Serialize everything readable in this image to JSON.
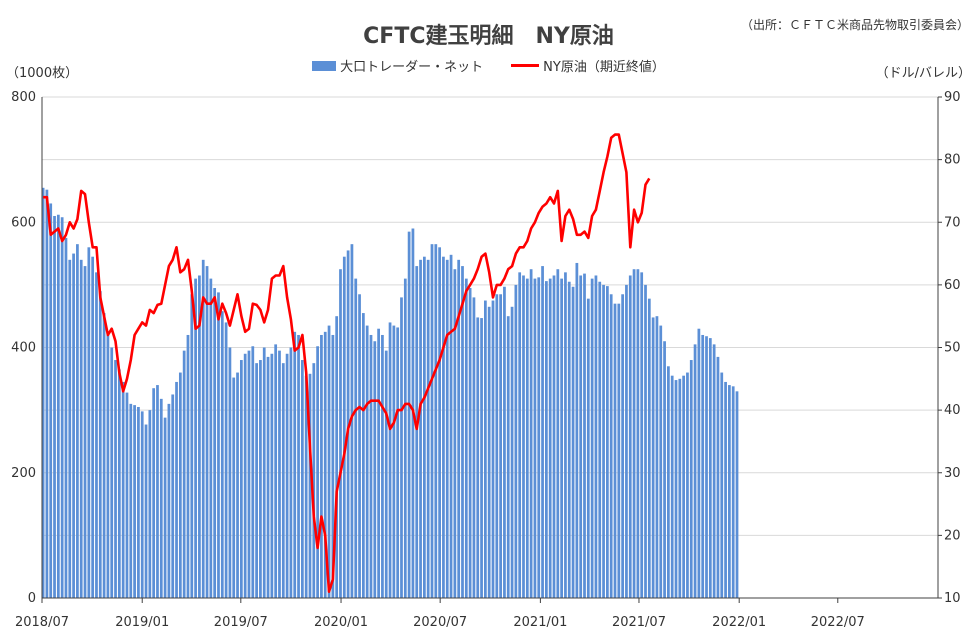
{
  "header": {
    "title": "CFTC建玉明細　NY原油",
    "source": "（出所：ＣＦＴＣ米商品先物取引委員会）",
    "unit_left": "（1000枚）",
    "unit_right": "（ドル/バレル）"
  },
  "legend": {
    "bar_label": "大口トレーダー・ネット",
    "line_label": "NY原油（期近終値）"
  },
  "colors": {
    "bar": "#5b8fd6",
    "line": "#ff0000",
    "grid": "#d9d9d9",
    "axis": "#404040"
  },
  "chart_data": {
    "type": "bar+line",
    "title": "CFTC建玉明細　NY原油",
    "x_tick_labels": [
      "2018/07",
      "2019/01",
      "2019/07",
      "2020/01",
      "2020/07",
      "2021/01",
      "2021/07",
      "2022/01",
      "2022/07"
    ],
    "xlim": [
      "2018/07",
      "2022/12"
    ],
    "y_left": {
      "label": "（1000枚）",
      "lim": [
        0,
        800
      ],
      "ticks": [
        "0",
        "200",
        "400",
        "600",
        "800"
      ]
    },
    "y_right": {
      "label": "（ドル/バレル）",
      "lim": [
        10,
        90
      ],
      "ticks": [
        "10",
        "20",
        "30",
        "40",
        "50",
        "60",
        "70",
        "80",
        "90"
      ]
    },
    "grid": true,
    "legend_position": "top",
    "series": [
      {
        "name": "大口トレーダー・ネット",
        "kind": "bar",
        "axis": "left",
        "x_start": "2018-07-03",
        "interval": "weekly",
        "values": [
          655,
          652,
          630,
          610,
          612,
          608,
          575,
          540,
          550,
          565,
          540,
          530,
          560,
          545,
          520,
          490,
          455,
          420,
          400,
          380,
          365,
          345,
          328,
          310,
          308,
          305,
          298,
          277,
          300,
          335,
          340,
          318,
          288,
          310,
          325,
          345,
          360,
          395,
          420,
          485,
          510,
          515,
          540,
          530,
          510,
          495,
          488,
          458,
          440,
          400,
          352,
          360,
          380,
          390,
          395,
          402,
          375,
          380,
          400,
          385,
          390,
          405,
          395,
          375,
          390,
          400,
          425,
          420,
          380,
          355,
          358,
          375,
          402,
          420,
          425,
          435,
          420,
          450,
          525,
          545,
          555,
          565,
          510,
          485,
          455,
          435,
          420,
          410,
          430,
          420,
          395,
          440,
          435,
          432,
          480,
          510,
          585,
          590,
          530,
          540,
          545,
          540,
          565,
          565,
          560,
          545,
          540,
          548,
          525,
          540,
          530,
          510,
          495,
          480,
          448,
          447,
          475,
          465,
          475,
          485,
          485,
          497,
          450,
          465,
          500,
          520,
          515,
          510,
          525,
          510,
          512,
          530,
          506,
          510,
          515,
          525,
          510,
          520,
          505,
          497,
          535,
          515,
          518,
          478,
          510,
          515,
          505,
          500,
          498,
          485,
          470,
          470,
          485,
          500,
          515,
          525,
          525,
          520,
          500,
          478,
          448,
          450,
          435,
          410,
          370,
          355,
          348,
          350,
          355,
          360,
          380,
          405,
          430,
          420,
          418,
          415,
          405,
          385,
          360,
          345,
          340,
          338,
          330
        ]
      },
      {
        "name": "NY原油（期近終値）",
        "kind": "line",
        "axis": "right",
        "x_start": "2018-07-03",
        "interval": "weekly",
        "values": [
          74,
          74,
          68,
          68.5,
          69,
          67,
          68,
          70,
          69,
          70.5,
          75,
          74.5,
          70,
          66,
          66,
          58,
          55,
          52,
          53,
          51,
          46,
          43,
          45,
          48,
          52,
          53,
          54,
          53.5,
          56,
          55.5,
          56.8,
          57,
          60,
          63,
          64,
          66,
          62,
          62.5,
          64,
          59,
          53,
          53.5,
          58,
          57,
          57,
          58,
          54.5,
          57,
          55.5,
          53.5,
          56,
          58.5,
          55,
          52.5,
          53,
          57,
          56.8,
          56,
          54,
          56,
          61,
          61.5,
          61.5,
          63,
          58,
          54.5,
          49.5,
          50,
          52,
          46,
          34,
          23,
          18,
          23,
          20,
          11,
          13,
          27,
          30,
          33,
          37,
          39,
          40,
          40.5,
          40,
          41,
          41.5,
          41.5,
          41.5,
          40.5,
          39.5,
          37,
          38,
          40,
          40,
          41,
          41,
          40,
          37,
          41,
          42,
          43.5,
          45,
          46.5,
          48,
          50,
          52,
          52.5,
          53,
          55,
          57,
          59,
          60,
          61,
          62.5,
          64.5,
          65,
          62,
          58,
          60,
          60,
          61,
          62.5,
          63,
          65,
          66,
          66,
          67,
          69,
          70,
          71.5,
          72.5,
          73,
          74,
          73,
          75,
          67,
          71,
          72,
          70.5,
          68,
          68,
          68.5,
          67.5,
          71,
          72,
          75,
          78,
          80.5,
          83.5,
          84,
          84,
          81,
          78,
          66,
          72,
          70,
          71.5,
          76,
          77
        ]
      }
    ]
  }
}
